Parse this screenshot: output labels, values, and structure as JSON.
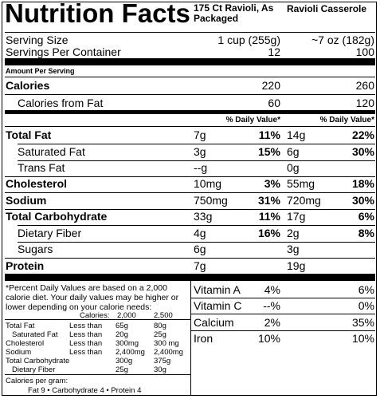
{
  "header": {
    "title": "Nutrition Facts",
    "col1_name": "175 Ct Ravioli, As Packaged",
    "col2_name": "Ravioli Casserole"
  },
  "serving": {
    "size_label": "Serving Size",
    "size_col1": "1 cup (255g)",
    "size_col2": "~7 oz   (182g)",
    "per_container_label": "Servings Per Container",
    "per_container_col1": "12",
    "per_container_col2": "100"
  },
  "amount_per_serving": "Amount Per Serving",
  "calories": {
    "label": "Calories",
    "col1": "220",
    "col2": "260"
  },
  "calories_fat": {
    "label": "Calories from Fat",
    "col1": "60",
    "col2": "120"
  },
  "dv_header": "% Daily Value*",
  "nutrients": [
    {
      "label": "Total Fat",
      "bold": true,
      "c1_amt": "7g",
      "c1_dv": "11%",
      "c2_amt": "14g",
      "c2_dv": "22%"
    },
    {
      "label": "Saturated Fat",
      "bold": false,
      "c1_amt": "3g",
      "c1_dv": "15%",
      "c2_amt": "6g",
      "c2_dv": "30%"
    },
    {
      "label": "Trans Fat",
      "bold": false,
      "c1_amt": "--g",
      "c1_dv": "",
      "c2_amt": "0g",
      "c2_dv": ""
    },
    {
      "label": "Cholesterol",
      "bold": true,
      "c1_amt": "10mg",
      "c1_dv": "3%",
      "c2_amt": "55mg",
      "c2_dv": "18%"
    },
    {
      "label": "Sodium",
      "bold": true,
      "c1_amt": "750mg",
      "c1_dv": "31%",
      "c2_amt": "720mg",
      "c2_dv": "30%"
    },
    {
      "label": "Total Carbohydrate",
      "bold": true,
      "c1_amt": "33g",
      "c1_dv": "11%",
      "c2_amt": "17g",
      "c2_dv": "6%"
    },
    {
      "label": "Dietary Fiber",
      "bold": false,
      "c1_amt": "4g",
      "c1_dv": "16%",
      "c2_amt": "2g",
      "c2_dv": "8%"
    },
    {
      "label": "Sugars",
      "bold": false,
      "c1_amt": "6g",
      "c1_dv": "",
      "c2_amt": "3g",
      "c2_dv": ""
    },
    {
      "label": "Protein",
      "bold": true,
      "c1_amt": "7g",
      "c1_dv": "",
      "c2_amt": "19g",
      "c2_dv": ""
    }
  ],
  "footnote": {
    "text": "*Percent Daily Values are based on a 2,000 calorie diet. Your daily values may be higher or lower depending on your calorie needs:",
    "calories_label": "Calories:",
    "cal_2000": "2,000",
    "cal_2500": "2,500",
    "rows": [
      {
        "name": "Total Fat",
        "cmp": "Less than",
        "v1": "65g",
        "v2": "80g"
      },
      {
        "name": "Saturated Fat",
        "cmp": "Less than",
        "v1": "20g",
        "v2": "25g"
      },
      {
        "name": "Cholesterol",
        "cmp": "Less than",
        "v1": "300mg",
        "v2": "300 mg"
      },
      {
        "name": "Sodium",
        "cmp": "Less than",
        "v1": "2,400mg",
        "v2": "2,400mg"
      },
      {
        "name": "Total Carbohydrate",
        "cmp": "",
        "v1": "300g",
        "v2": "375g"
      },
      {
        "name": "Dietary Fiber",
        "cmp": "",
        "v1": "25g",
        "v2": "30g"
      }
    ],
    "cal_per_gram": "Calories per gram:",
    "macros": "Fat 9  •  Carbohydrate 4  •  Protein 4"
  },
  "vitamins": [
    {
      "label": "Vitamin A",
      "c1": "4%",
      "c2": "6%"
    },
    {
      "label": "Vitamin C",
      "c1": "--%",
      "c2": "0%"
    },
    {
      "label": "Calcium",
      "c1": "2%",
      "c2": "35%"
    },
    {
      "label": "Iron",
      "c1": "10%",
      "c2": "10%"
    }
  ]
}
